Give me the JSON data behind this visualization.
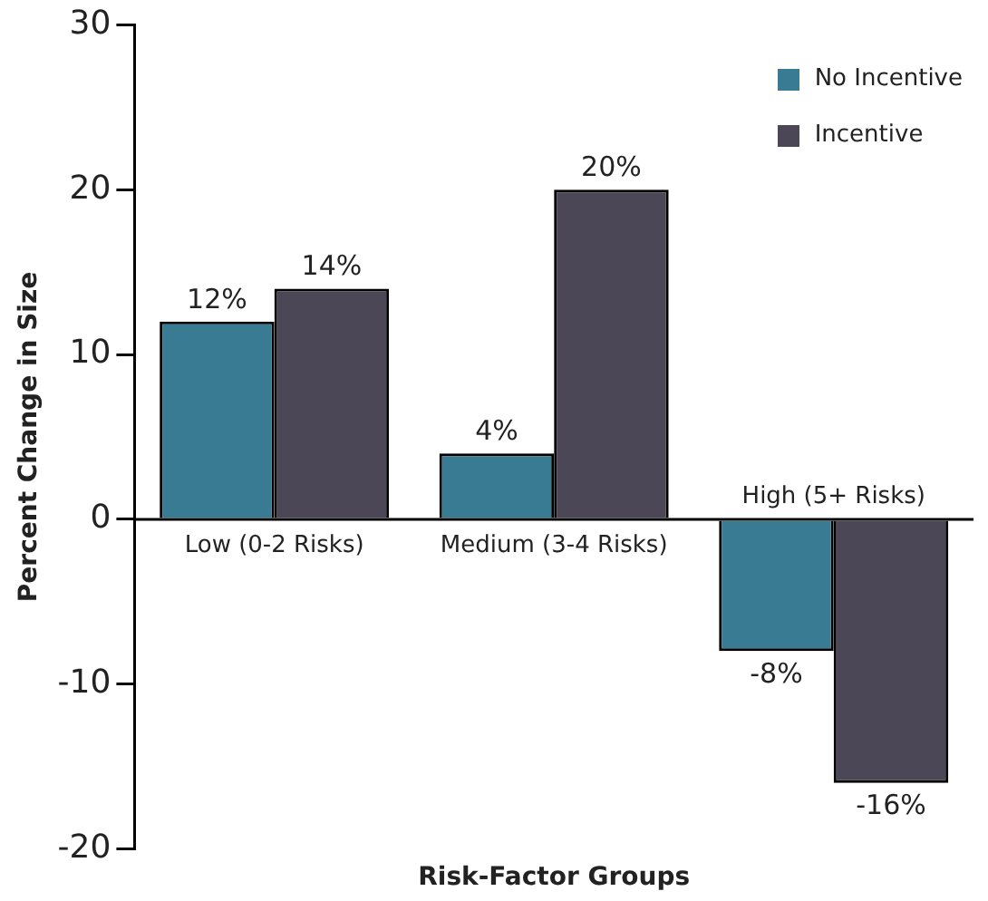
{
  "chart_data": {
    "type": "bar",
    "xlabel": "Risk-Factor Groups",
    "ylabel": "Percent Change in Size",
    "categories": [
      "Low (0-2 Risks)",
      "Medium (3-4 Risks)",
      "High (5+ Risks)"
    ],
    "series": [
      {
        "name": "No Incentive",
        "color": "#3a7b94",
        "values": [
          12,
          4,
          -8
        ],
        "value_labels": [
          "12%",
          "4%",
          "-8%"
        ]
      },
      {
        "name": "Incentive",
        "color": "#4b4756",
        "values": [
          14,
          20,
          -16
        ],
        "value_labels": [
          "14%",
          "20%",
          "-16%"
        ]
      }
    ],
    "ylim": [
      -20,
      30
    ],
    "yticks": [
      -20,
      -10,
      0,
      10,
      20,
      30
    ],
    "grid": false,
    "legend": "top right"
  }
}
